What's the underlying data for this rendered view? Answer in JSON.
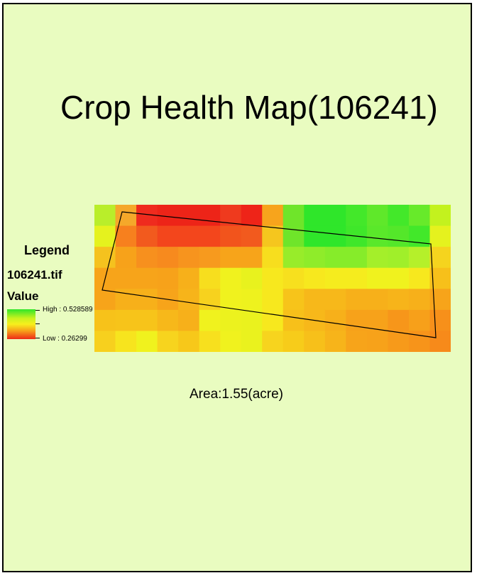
{
  "map": {
    "title": "Crop Health Map(106241)",
    "area_label": "Area:1.55(acre)"
  },
  "legend": {
    "heading": "Legend",
    "layer": "106241.tif",
    "field": "Value",
    "high_label": "High : 0.528589",
    "low_label": "Low : 0.26299",
    "high_value": 0.528589,
    "low_value": 0.26299,
    "ramp_colors": [
      "#2fe62a",
      "#c9f21e",
      "#f7f01d",
      "#f7a21a",
      "#ee2a18"
    ]
  },
  "raster": {
    "cols": 17,
    "rows": 7,
    "cells": [
      [
        "#b9ee2a",
        "#f5a82a",
        "#ef2b1e",
        "#ed2418",
        "#ed2418",
        "#ed2418",
        "#ef3a1e",
        "#ee2418",
        "#f7a41c",
        "#6fe52a",
        "#2fe62a",
        "#2fe62a",
        "#43e82a",
        "#5fe82a",
        "#43e82a",
        "#67ea2a",
        "#c3f21e"
      ],
      [
        "#e5f21e",
        "#f7801e",
        "#f25a1e",
        "#f3461c",
        "#f3461c",
        "#f3461c",
        "#f2541c",
        "#f25a1e",
        "#f5c61e",
        "#6fe52a",
        "#2fe62a",
        "#2fe62a",
        "#3fe72a",
        "#5ae82a",
        "#54e72a",
        "#42e82a",
        "#e5f21e"
      ],
      [
        "#f5c21e",
        "#f7a21a",
        "#f7901e",
        "#f78a1e",
        "#f7941e",
        "#f79a1e",
        "#f7a41a",
        "#f7a41a",
        "#f7de1e",
        "#98ec2a",
        "#8fec2a",
        "#86ec2a",
        "#86ec2a",
        "#a4ef2a",
        "#a0ef2a",
        "#b5f02a",
        "#f5d41e"
      ],
      [
        "#f7a41a",
        "#f7a41a",
        "#f7a41a",
        "#f7a21a",
        "#f7b01a",
        "#f7de1e",
        "#f0f21e",
        "#e8f21e",
        "#f7e81e",
        "#f7e01e",
        "#f7e81e",
        "#f5ec1e",
        "#f5ec1e",
        "#f0f21e",
        "#f0f21e",
        "#f7e81e",
        "#f7c01a"
      ],
      [
        "#f7a41a",
        "#f7b01a",
        "#f7b01a",
        "#f7a41a",
        "#f7b41a",
        "#f7d21e",
        "#f0f21e",
        "#eef21e",
        "#f7e81e",
        "#f7c41a",
        "#f7b81a",
        "#f7b81a",
        "#f7b01a",
        "#f7b01a",
        "#f7b41a",
        "#f7b01a",
        "#f7a41a"
      ],
      [
        "#f7c21a",
        "#f7c41a",
        "#f7c41a",
        "#f7b81a",
        "#f7b01a",
        "#f0f21e",
        "#ecf21e",
        "#eaf21e",
        "#f7e81e",
        "#f7c01a",
        "#f7b81a",
        "#f7b01a",
        "#f7a21a",
        "#f7a21a",
        "#f7961a",
        "#f7a01a",
        "#f7901a"
      ],
      [
        "#f7d01e",
        "#f7e41e",
        "#f0f21e",
        "#f7d41e",
        "#f7c81a",
        "#f7e01e",
        "#f0f21e",
        "#eaf21e",
        "#f7d41e",
        "#f7cc1a",
        "#f7c01a",
        "#f7b41a",
        "#f7a41a",
        "#f7a21a",
        "#f79a1a",
        "#f7941a",
        "#f78a1a"
      ]
    ],
    "boundary": "field-boundary"
  }
}
